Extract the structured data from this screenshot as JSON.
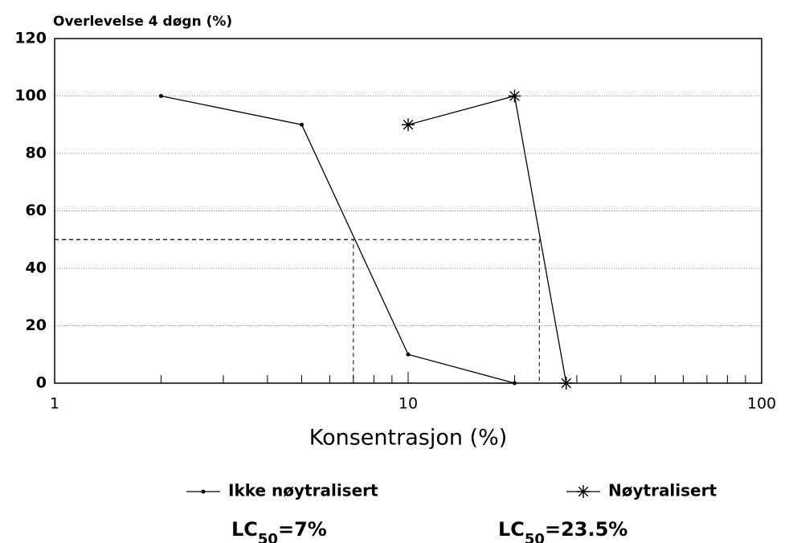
{
  "chart_data": {
    "type": "line",
    "title": "Overlevelse 4 døgn (%)",
    "x_label": "Konsentrasjon (%)",
    "xscale": "log",
    "xlim": [
      1,
      100
    ],
    "xticks": [
      1,
      10,
      100
    ],
    "xminor_ticks": [
      2,
      3,
      4,
      5,
      6,
      7,
      8,
      9,
      20,
      30,
      40,
      50,
      60,
      70,
      80,
      90
    ],
    "ylim": [
      0,
      120
    ],
    "yticks": [
      0,
      20,
      40,
      60,
      80,
      100,
      120
    ],
    "grid": true,
    "legend": "bottom",
    "series": [
      {
        "name": "Ikke nøytralisert",
        "color": "#000000",
        "marker": "dot",
        "x": [
          2,
          5,
          10,
          20
        ],
        "values": [
          100,
          90,
          10,
          0
        ]
      },
      {
        "name": "Nøytralisert",
        "color": "#000000",
        "marker": "asterisk",
        "x": [
          10,
          20,
          28
        ],
        "values": [
          90,
          100,
          0
        ]
      }
    ],
    "lc50": [
      {
        "x": 7,
        "y": 50,
        "label_main": "LC",
        "label_sub": "50",
        "label_value": "=7%"
      },
      {
        "x": 23.5,
        "y": 50,
        "label_main": "LC",
        "label_sub": "50",
        "label_value": "=23.5%"
      }
    ]
  }
}
